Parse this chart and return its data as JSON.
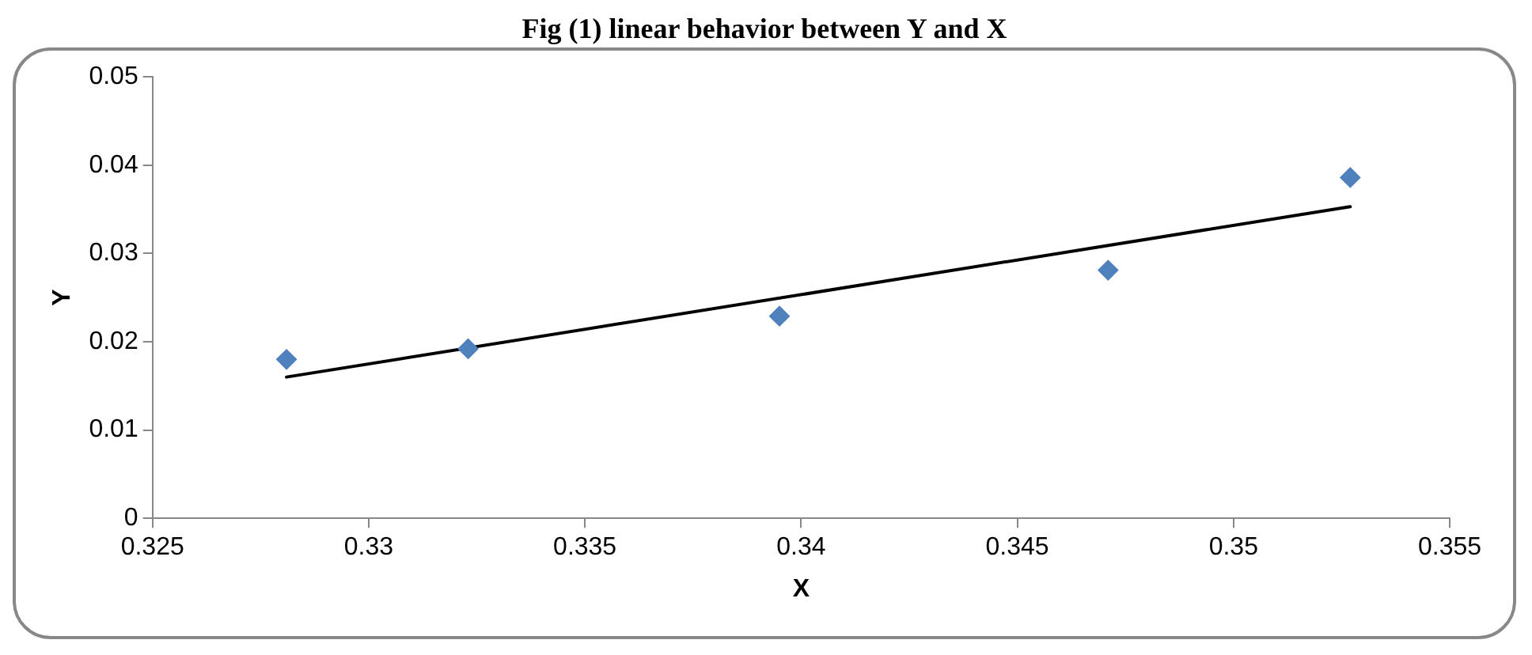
{
  "chart_data": {
    "type": "scatter",
    "title": "Fig (1) linear behavior between Y and X",
    "xlabel": "X",
    "ylabel": "Y",
    "series": [
      {
        "type": "scatter",
        "color": "#4f81bd",
        "x": [
          0.3281,
          0.3323,
          0.3395,
          0.3471,
          0.3527
        ],
        "values": [
          0.018,
          0.0192,
          0.0229,
          0.0281,
          0.0386
        ]
      },
      {
        "type": "line",
        "color": "#000000",
        "x": [
          0.3281,
          0.3527
        ],
        "values": [
          0.016,
          0.0353
        ],
        "marker": "none"
      }
    ],
    "xlim": [
      0.325,
      0.355
    ],
    "xticks": [
      0.325,
      0.33,
      0.335,
      0.34,
      0.345,
      0.35,
      0.355
    ],
    "ylim": [
      0,
      0.05
    ],
    "yticks": [
      0,
      0.01,
      0.02,
      0.03,
      0.04,
      0.05
    ],
    "marker": "diamond",
    "grid": false,
    "legend": false
  }
}
